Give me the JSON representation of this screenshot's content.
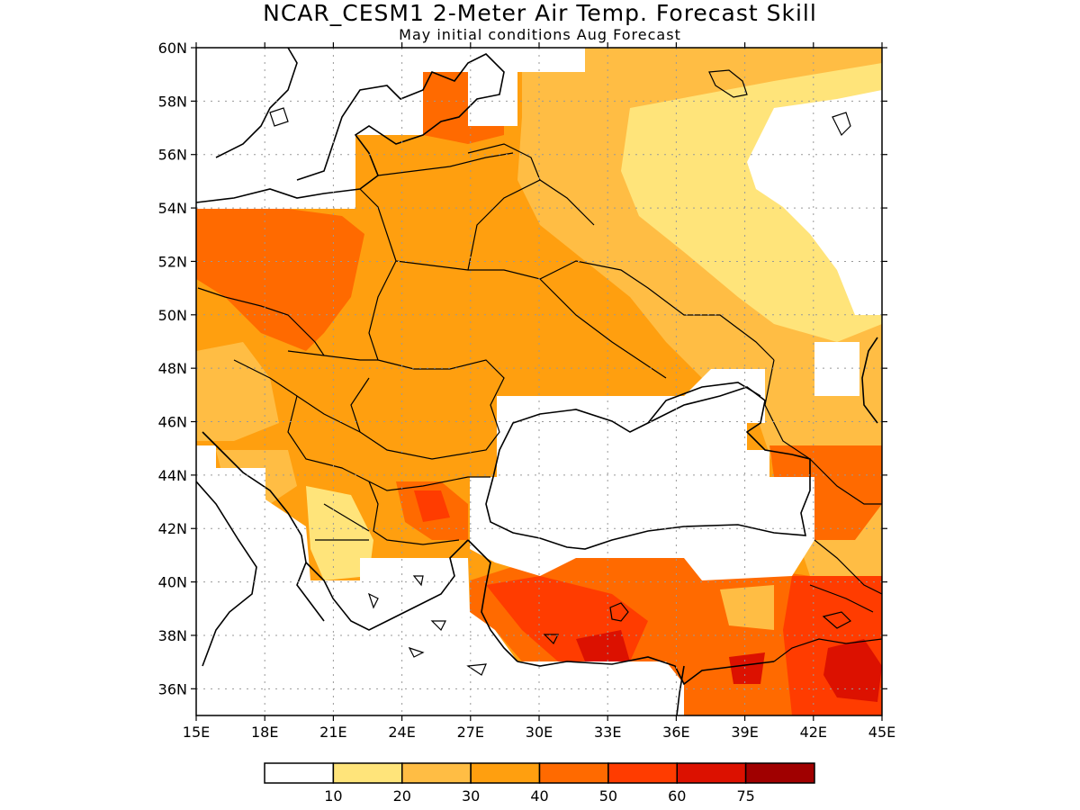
{
  "title": "NCAR_CESM1 2-Meter Air Temp. Forecast Skill",
  "subtitle": "May initial conditions  Aug Forecast",
  "map": {
    "lon_range": [
      15,
      45
    ],
    "lat_range": [
      35,
      60
    ],
    "lon_ticks": [
      {
        "value": 15,
        "label": "15E"
      },
      {
        "value": 18,
        "label": "18E"
      },
      {
        "value": 21,
        "label": "21E"
      },
      {
        "value": 24,
        "label": "24E"
      },
      {
        "value": 27,
        "label": "27E"
      },
      {
        "value": 30,
        "label": "30E"
      },
      {
        "value": 33,
        "label": "33E"
      },
      {
        "value": 36,
        "label": "36E"
      },
      {
        "value": 39,
        "label": "39E"
      },
      {
        "value": 42,
        "label": "42E"
      },
      {
        "value": 45,
        "label": "45E"
      }
    ],
    "lat_ticks": [
      {
        "value": 36,
        "label": "36N"
      },
      {
        "value": 38,
        "label": "38N"
      },
      {
        "value": 40,
        "label": "40N"
      },
      {
        "value": 42,
        "label": "42N"
      },
      {
        "value": 44,
        "label": "44N"
      },
      {
        "value": 46,
        "label": "46N"
      },
      {
        "value": 48,
        "label": "48N"
      },
      {
        "value": 50,
        "label": "50N"
      },
      {
        "value": 52,
        "label": "52N"
      },
      {
        "value": 54,
        "label": "54N"
      },
      {
        "value": 56,
        "label": "56N"
      },
      {
        "value": 58,
        "label": "58N"
      },
      {
        "value": 60,
        "label": "60N"
      }
    ],
    "grid": true
  },
  "colorbar": {
    "colors": [
      "#ffffff",
      "#ffe47a",
      "#ffbd44",
      "#ff9f0f",
      "#ff6a00",
      "#ff3c00",
      "#dc1100",
      "#a00000"
    ],
    "labels": [
      "10",
      "20",
      "30",
      "40",
      "50",
      "60",
      "75"
    ]
  }
}
